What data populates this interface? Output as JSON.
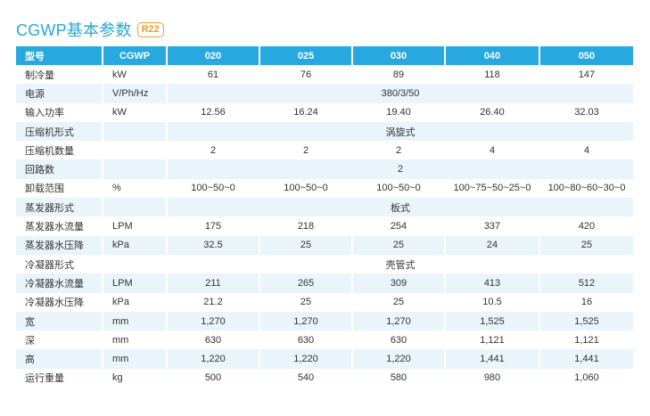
{
  "title": "CGWP基本参数",
  "badge": "R22",
  "header": [
    "型号",
    "CGWP",
    "020",
    "025",
    "030",
    "040",
    "050"
  ],
  "rows": [
    {
      "name": "制冷量",
      "unit": "kW",
      "values": [
        "61",
        "76",
        "89",
        "118",
        "147"
      ]
    },
    {
      "name": "电源",
      "unit": "V/Ph/Hz",
      "span": "380/3/50"
    },
    {
      "name": "输入功率",
      "unit": "kW",
      "values": [
        "12.56",
        "16.24",
        "19.40",
        "26.40",
        "32.03"
      ]
    },
    {
      "name": "压缩机形式",
      "unit": "",
      "span": "涡旋式"
    },
    {
      "name": "压缩机数量",
      "unit": "",
      "values": [
        "2",
        "2",
        "2",
        "4",
        "4"
      ]
    },
    {
      "name": "回路数",
      "unit": "",
      "span": "2"
    },
    {
      "name": "卸载范围",
      "unit": "%",
      "values": [
        "100~50~0",
        "100~50~0",
        "100~50~0",
        "100~75~50~25~0",
        "100~80~60~30~0"
      ]
    },
    {
      "name": "蒸发器形式",
      "unit": "",
      "span": "板式"
    },
    {
      "name": "蒸发器水流量",
      "unit": "LPM",
      "values": [
        "175",
        "218",
        "254",
        "337",
        "420"
      ]
    },
    {
      "name": "蒸发器水压降",
      "unit": "kPa",
      "values": [
        "32.5",
        "25",
        "25",
        "24",
        "25"
      ]
    },
    {
      "name": "冷凝器形式",
      "unit": "",
      "span": "壳管式"
    },
    {
      "name": "冷凝器水流量",
      "unit": "LPM",
      "values": [
        "211",
        "265",
        "309",
        "413",
        "512"
      ]
    },
    {
      "name": "冷凝器水压降",
      "unit": "kPa",
      "values": [
        "21.2",
        "25",
        "25",
        "10.5",
        "16"
      ]
    },
    {
      "name": "宽",
      "unit": "mm",
      "values": [
        "1,270",
        "1,270",
        "1,270",
        "1,525",
        "1,525"
      ]
    },
    {
      "name": "深",
      "unit": "mm",
      "values": [
        "630",
        "630",
        "630",
        "1,121",
        "1,121"
      ]
    },
    {
      "name": "高",
      "unit": "mm",
      "values": [
        "1,220",
        "1,220",
        "1,220",
        "1,441",
        "1,441"
      ]
    },
    {
      "name": "运行重量",
      "unit": "kg",
      "values": [
        "500",
        "540",
        "580",
        "980",
        "1,060"
      ]
    }
  ]
}
